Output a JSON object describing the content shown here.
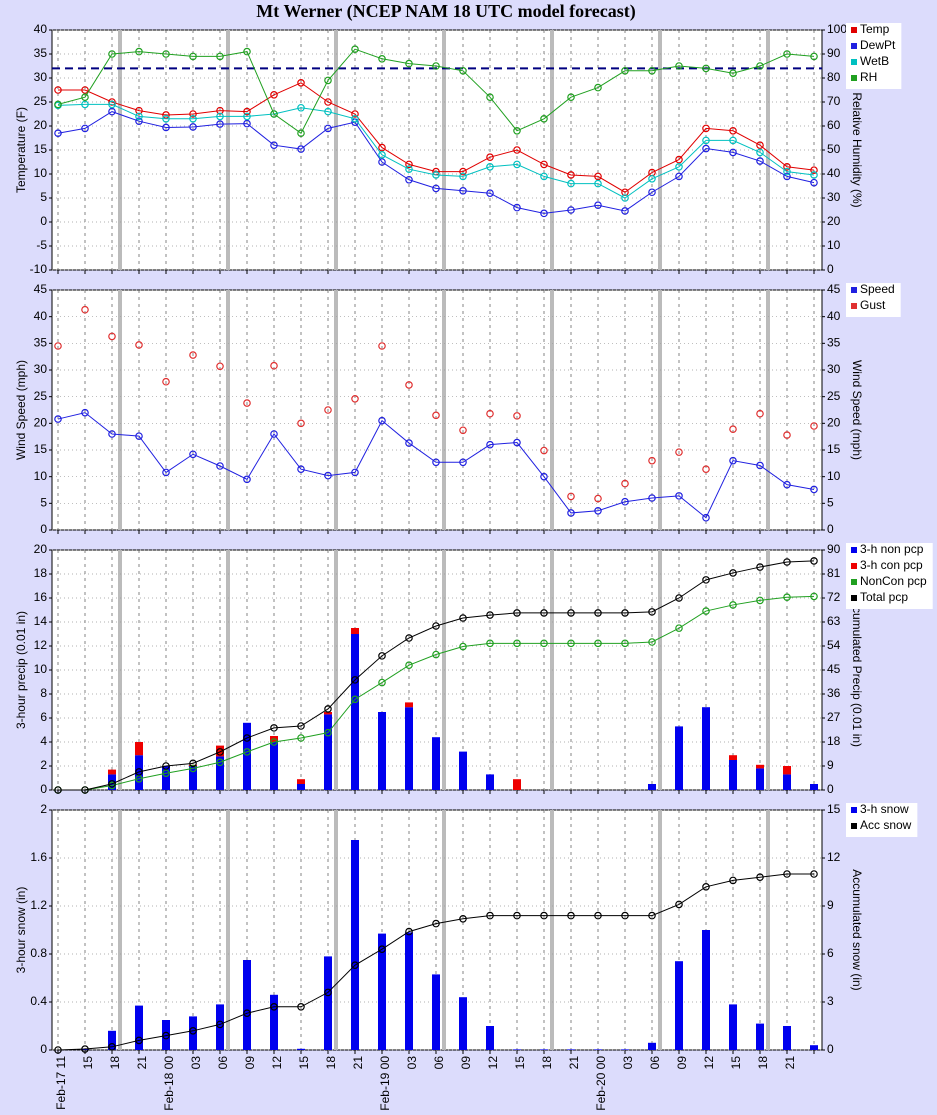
{
  "chart_data": [
    {
      "type": "line",
      "title": "Mt Werner (NCEP NAM 18 UTC model forecast)",
      "ylabel": "Temperature (F)",
      "y2label": "Relative Humidity (%)",
      "ylim": [
        -10,
        40
      ],
      "yticks": [
        -10,
        -5,
        0,
        5,
        10,
        15,
        20,
        25,
        30,
        35,
        40
      ],
      "y2lim": [
        0,
        100
      ],
      "y2ticks": [
        0,
        10,
        20,
        30,
        40,
        50,
        60,
        70,
        80,
        90,
        100
      ],
      "hline": 32,
      "hline_color": "#000080",
      "grid": true,
      "legend": "outside-right",
      "series": [
        {
          "name": "Temp",
          "color": "#e00000",
          "style": "line",
          "values": [
            27.5,
            27.5,
            25,
            23.2,
            22.3,
            22.5,
            23.2,
            23,
            26.5,
            29,
            25,
            22.5,
            15.5,
            12,
            10.5,
            10.5,
            13.5,
            15,
            12,
            9.8,
            9.5,
            6.2,
            10.3,
            13,
            19.5,
            19,
            16,
            11.5,
            10.8
          ]
        },
        {
          "name": "DewPt",
          "color": "#2020e0",
          "style": "line",
          "values": [
            18.5,
            19.5,
            23,
            21,
            19.7,
            19.8,
            20.4,
            20.5,
            16,
            15.2,
            19.5,
            20.8,
            12.5,
            8.8,
            7,
            6.5,
            6,
            3,
            1.8,
            2.5,
            3.5,
            2.3,
            6.2,
            9.5,
            15.3,
            14.5,
            12.7,
            9.5,
            8.2
          ]
        },
        {
          "name": "WetB",
          "color": "#00c0c0",
          "style": "line",
          "values": [
            24.3,
            24.5,
            24.5,
            22,
            21.5,
            21.5,
            22,
            22,
            22.5,
            23.8,
            23,
            21.5,
            14,
            11,
            9.8,
            9.5,
            11.5,
            12,
            9.5,
            8,
            8,
            5,
            9,
            11.5,
            17,
            17,
            14.5,
            10.5,
            9.8
          ]
        },
        {
          "name": "RH",
          "color": "#20a020",
          "style": "line",
          "axis": "y2",
          "values": [
            69,
            72,
            90,
            91,
            90,
            89,
            89,
            91,
            65,
            57,
            79,
            92,
            88,
            86,
            85,
            83,
            72,
            58,
            63,
            72,
            76,
            83,
            83,
            85,
            84,
            82,
            85,
            90,
            89
          ]
        }
      ]
    },
    {
      "type": "line",
      "ylabel": "Wind Speed (mph)",
      "y2label": "Wind Speed (mph)",
      "ylim": [
        0,
        45
      ],
      "yticks": [
        0,
        5,
        10,
        15,
        20,
        25,
        30,
        35,
        40,
        45
      ],
      "y2lim": [
        0,
        45
      ],
      "y2ticks": [
        0,
        5,
        10,
        15,
        20,
        25,
        30,
        35,
        40,
        45
      ],
      "grid": true,
      "legend": "outside-right",
      "series": [
        {
          "name": "Speed",
          "color": "#2020e0",
          "style": "line",
          "values": [
            20.8,
            22,
            18,
            17.6,
            10.8,
            14.2,
            12,
            9.5,
            18,
            11.4,
            10.2,
            10.8,
            20.5,
            16.3,
            12.7,
            12.7,
            16,
            16.4,
            10,
            3.2,
            3.6,
            5.3,
            6,
            6.4,
            2.3,
            13,
            12.1,
            8.5,
            7.6
          ]
        },
        {
          "name": "Gust",
          "color": "#e03030",
          "style": "points",
          "values": [
            34.5,
            41.3,
            36.3,
            34.7,
            27.8,
            32.8,
            30.7,
            23.8,
            30.8,
            20,
            22.5,
            24.6,
            34.5,
            27.2,
            21.5,
            18.7,
            21.8,
            21.4,
            14.9,
            6.3,
            5.9,
            8.7,
            13,
            14.6,
            11.4,
            18.9,
            21.8,
            17.8,
            19.5
          ]
        }
      ]
    },
    {
      "type": "bar",
      "ylabel": "3-hour precip (0.01 in)",
      "y2label": "Accumulated Precip (0.01 in)",
      "ylim": [
        0,
        20
      ],
      "yticks": [
        0,
        2,
        4,
        6,
        8,
        10,
        12,
        14,
        16,
        18,
        20
      ],
      "y2lim": [
        0,
        90
      ],
      "y2ticks": [
        0,
        9,
        18,
        27,
        36,
        45,
        54,
        63,
        72,
        81,
        90
      ],
      "grid": true,
      "legend": "outside-right",
      "series": [
        {
          "name": "3-h non pcp",
          "color": "#0000ee",
          "style": "bar",
          "values": [
            0,
            0,
            1.3,
            2.9,
            2,
            2,
            2.8,
            5.6,
            4,
            0.5,
            6.3,
            13,
            6.5,
            6.9,
            4.4,
            3.2,
            1.3,
            0,
            0,
            0,
            0,
            0,
            0.5,
            5.3,
            6.9,
            2.5,
            1.8,
            1.3,
            0.5
          ]
        },
        {
          "name": "3-h con pcp",
          "color": "#ee0000",
          "style": "bar",
          "values": [
            0,
            0,
            0.4,
            1.1,
            0,
            0.1,
            0.9,
            0,
            0.5,
            0.4,
            0.2,
            0.5,
            0,
            0.4,
            0,
            0,
            0,
            0.9,
            0,
            0,
            0,
            0,
            0,
            0,
            0,
            0.4,
            0.3,
            0.7,
            0
          ]
        },
        {
          "name": "NonCon pcp",
          "color": "#20a020",
          "style": "line",
          "axis": "y2",
          "values": [
            0,
            0,
            1.7,
            4.2,
            6.3,
            8.1,
            10.4,
            14.3,
            18,
            19.5,
            21.5,
            34,
            40.3,
            46.8,
            50.8,
            53.8,
            55,
            55,
            55,
            55,
            55,
            55,
            55.5,
            60.7,
            67.1,
            69.4,
            71.1,
            72.3,
            72.6
          ]
        },
        {
          "name": "Total pcp",
          "color": "#000000",
          "style": "line",
          "axis": "y2",
          "values": [
            0,
            0,
            2.3,
            6.8,
            9,
            10,
            14.3,
            19.5,
            23.3,
            24,
            30.4,
            41.3,
            50.3,
            57,
            61.5,
            64.5,
            65.6,
            66.4,
            66.4,
            66.4,
            66.4,
            66.4,
            66.8,
            72,
            78.8,
            81.4,
            83.6,
            85.5,
            85.9
          ]
        }
      ]
    },
    {
      "type": "bar",
      "ylabel": "3-hour snow (in)",
      "y2label": "Accumulated snow (in)",
      "ylim": [
        0,
        2
      ],
      "yticks": [
        0,
        0.4,
        0.8,
        1.2,
        1.6,
        2
      ],
      "y2lim": [
        0,
        15
      ],
      "y2ticks": [
        0,
        3,
        6,
        9,
        12,
        15
      ],
      "grid": true,
      "legend": "outside-right",
      "categories": [
        "Feb-17 11",
        "15",
        "18",
        "21",
        "Feb-18 00",
        "03",
        "06",
        "09",
        "12",
        "15",
        "18",
        "21",
        "Feb-19 00",
        "03",
        "06",
        "09",
        "12",
        "15",
        "18",
        "21",
        "Feb-20 00",
        "03",
        "06",
        "09",
        "12",
        "15",
        "18",
        "21",
        null
      ],
      "series": [
        {
          "name": "3-h snow",
          "color": "#0000ee",
          "style": "bar",
          "values": [
            0,
            0.01,
            0.16,
            0.37,
            0.25,
            0.28,
            0.38,
            0.75,
            0.46,
            0.01,
            0.78,
            1.75,
            0.97,
            0.98,
            0.63,
            0.44,
            0.2,
            0.005,
            0.005,
            0.005,
            0.005,
            0.005,
            0.06,
            0.74,
            1,
            0.38,
            0.22,
            0.2,
            0.04
          ]
        },
        {
          "name": "Acc snow",
          "color": "#000000",
          "style": "line",
          "axis": "y2",
          "values": [
            0,
            0.06,
            0.2,
            0.6,
            0.9,
            1.2,
            1.6,
            2.3,
            2.7,
            2.7,
            3.6,
            5.3,
            6.3,
            7.4,
            7.9,
            8.2,
            8.4,
            8.4,
            8.4,
            8.4,
            8.4,
            8.4,
            8.4,
            9.1,
            10.2,
            10.6,
            10.8,
            11,
            11
          ]
        }
      ]
    }
  ]
}
